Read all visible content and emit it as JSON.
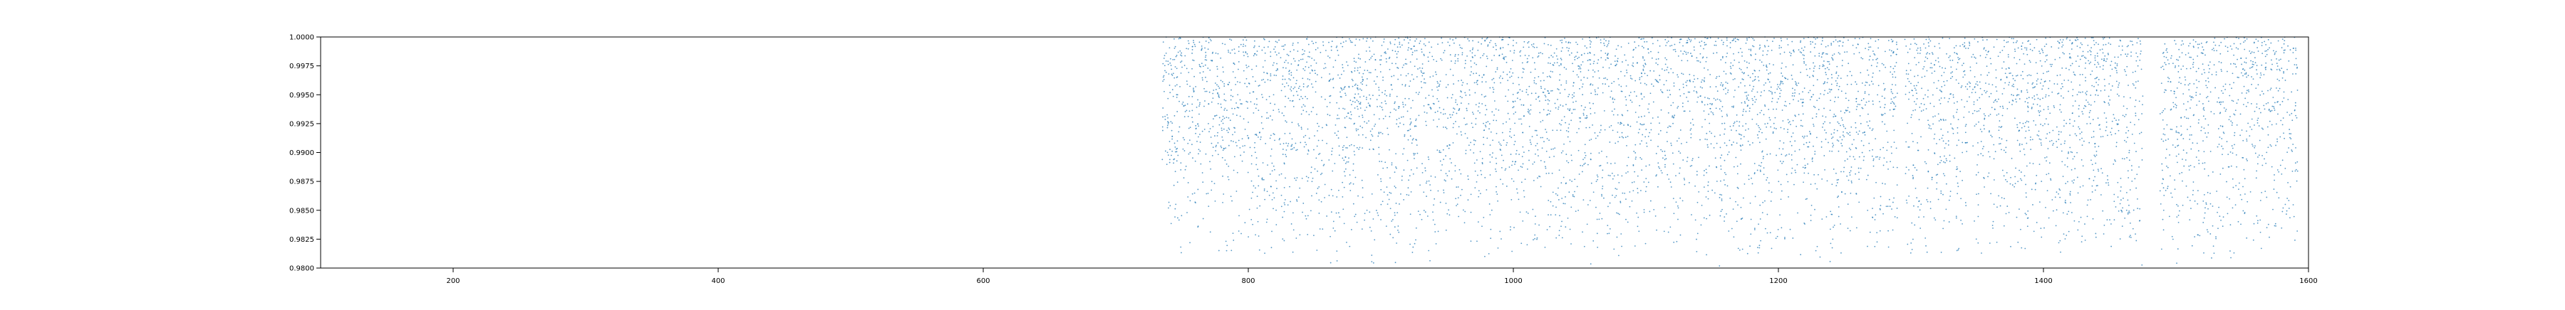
{
  "chart_data": {
    "type": "scatter",
    "title": "",
    "xlabel": "",
    "ylabel": "",
    "xlim": [
      100,
      1600
    ],
    "ylim": [
      0.98,
      1.0
    ],
    "x_ticks": [
      200,
      400,
      600,
      800,
      1000,
      1200,
      1400,
      1600
    ],
    "x_tick_labels": [
      "200",
      "400",
      "600",
      "800",
      "1000",
      "1200",
      "1400",
      "1600"
    ],
    "y_ticks": [
      0.98,
      0.9825,
      0.985,
      0.9875,
      0.99,
      0.9925,
      0.995,
      0.9975,
      1.0
    ],
    "y_tick_labels": [
      "0.9800",
      "0.9825",
      "0.9850",
      "0.9875",
      "0.9900",
      "0.9925",
      "0.9950",
      "0.9975",
      "1.0000"
    ],
    "grid": false,
    "legend": "none",
    "series": [
      {
        "marker": "point",
        "color": "#1f77b4",
        "point_count": 6000,
        "x_extent": [
          735,
          1592
        ],
        "y_extent": [
          0.98,
          1.0
        ],
        "y_distribution": "density increases toward 1.0",
        "dense_x_ranges": [
          [
            735,
            1290
          ],
          [
            1295,
            1475
          ],
          [
            1488,
            1592
          ]
        ],
        "sparse_x_ranges": [
          [
            1290,
            1295
          ],
          [
            1475,
            1488
          ]
        ],
        "sampled_points": [
          {
            "x": 740,
            "y": 0.9968
          },
          {
            "x": 752,
            "y": 0.9931
          },
          {
            "x": 768,
            "y": 0.9984
          },
          {
            "x": 781,
            "y": 0.9902
          },
          {
            "x": 799,
            "y": 0.9957
          },
          {
            "x": 812,
            "y": 0.9991
          },
          {
            "x": 836,
            "y": 0.9876
          },
          {
            "x": 858,
            "y": 0.9946
          },
          {
            "x": 880,
            "y": 0.9979
          },
          {
            "x": 905,
            "y": 0.9921
          },
          {
            "x": 931,
            "y": 0.9987
          },
          {
            "x": 957,
            "y": 0.9854
          },
          {
            "x": 984,
            "y": 0.9963
          },
          {
            "x": 1012,
            "y": 0.9936
          },
          {
            "x": 1043,
            "y": 0.9995
          },
          {
            "x": 1071,
            "y": 0.9891
          },
          {
            "x": 1098,
            "y": 0.9972
          },
          {
            "x": 1126,
            "y": 0.9949
          },
          {
            "x": 1158,
            "y": 0.9983
          },
          {
            "x": 1185,
            "y": 0.9838
          },
          {
            "x": 1214,
            "y": 0.9958
          },
          {
            "x": 1242,
            "y": 0.9917
          },
          {
            "x": 1268,
            "y": 0.9989
          },
          {
            "x": 1286,
            "y": 0.9944
          },
          {
            "x": 1304,
            "y": 0.9976
          },
          {
            "x": 1327,
            "y": 0.9893
          },
          {
            "x": 1352,
            "y": 0.9961
          },
          {
            "x": 1378,
            "y": 0.9982
          },
          {
            "x": 1403,
            "y": 0.9867
          },
          {
            "x": 1428,
            "y": 0.9952
          },
          {
            "x": 1452,
            "y": 0.9927
          },
          {
            "x": 1470,
            "y": 0.9986
          },
          {
            "x": 1494,
            "y": 0.9965
          },
          {
            "x": 1516,
            "y": 0.9908
          },
          {
            "x": 1539,
            "y": 0.9991
          },
          {
            "x": 1561,
            "y": 0.9942
          },
          {
            "x": 1578,
            "y": 0.9972
          },
          {
            "x": 1590,
            "y": 0.9884
          }
        ]
      }
    ]
  }
}
